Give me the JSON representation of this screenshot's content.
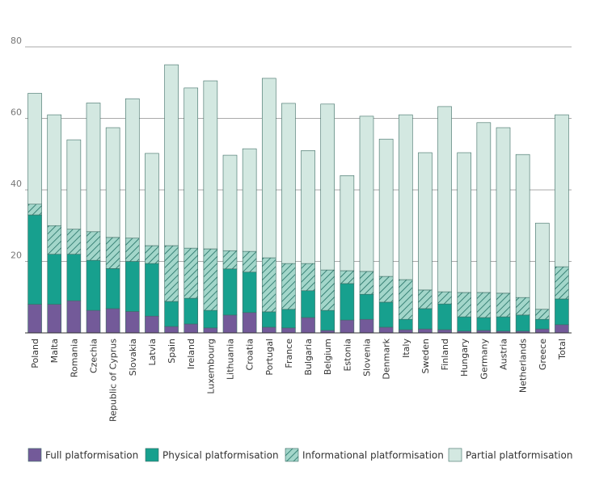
{
  "chart_data": {
    "type": "stacked-bar",
    "categories": [
      "Poland",
      "Malta",
      "Romania",
      "Czechia",
      "Republic of Cyprus",
      "Slovakia",
      "Latvia",
      "Spain",
      "Ireland",
      "Luxembourg",
      "Lithuania",
      "Croatia",
      "Portugal",
      "France",
      "Bulgaria",
      "Belgium",
      "Estonia",
      "Slovenia",
      "Denmark",
      "Italy",
      "Sweden",
      "Finland",
      "Hungary",
      "Germany",
      "Austria",
      "Netherlands",
      "Greece",
      "Total"
    ],
    "series": [
      {
        "name": "Full platformisation",
        "color": "#735a99",
        "pattern": "solid",
        "values": [
          8,
          8,
          9,
          6.3,
          6.8,
          6,
          4.7,
          1.8,
          2.5,
          1.4,
          5,
          5.7,
          1.6,
          1.4,
          4.3,
          0.7,
          3.6,
          3.8,
          1.6,
          0.9,
          1.1,
          0.9,
          0.5,
          0.7,
          0.5,
          0.5,
          1.1,
          2.3
        ]
      },
      {
        "name": "Physical platformisation",
        "color": "#17a08e",
        "pattern": "solid",
        "values": [
          25,
          14,
          13,
          14,
          11.2,
          14,
          14.7,
          7,
          7.2,
          4.9,
          12.9,
          11.3,
          4.3,
          5.2,
          7.5,
          5.6,
          10.2,
          7,
          7,
          2.9,
          5.7,
          7.2,
          4,
          3.6,
          4,
          4.5,
          2.7,
          7.2
        ]
      },
      {
        "name": "Informational platformisation",
        "color": "#a3d6ca",
        "pattern": "hatch",
        "values": [
          3,
          8,
          7,
          8,
          8.7,
          6.5,
          5,
          15.6,
          14,
          17.2,
          5.1,
          5.8,
          15.1,
          12.8,
          7.6,
          11.3,
          3.6,
          6.4,
          7.2,
          11.1,
          5.2,
          3.4,
          6.8,
          7,
          6.6,
          4.9,
          2.8,
          9
        ]
      },
      {
        "name": "Partial platformisation",
        "color": "#d3e8e1",
        "pattern": "solid",
        "values": [
          31,
          31,
          25,
          36,
          30.7,
          39,
          25.8,
          50.6,
          44.8,
          47,
          26.7,
          28.7,
          50.2,
          44.8,
          31.6,
          46.4,
          26.6,
          43.4,
          38.4,
          46.1,
          38.4,
          51.8,
          39.1,
          47.5,
          46.3,
          40,
          24.1,
          42.5
        ]
      }
    ],
    "ylim": [
      0,
      80
    ],
    "yticks": [
      20,
      40,
      60,
      80
    ],
    "grid": true,
    "legend": "bottom"
  }
}
